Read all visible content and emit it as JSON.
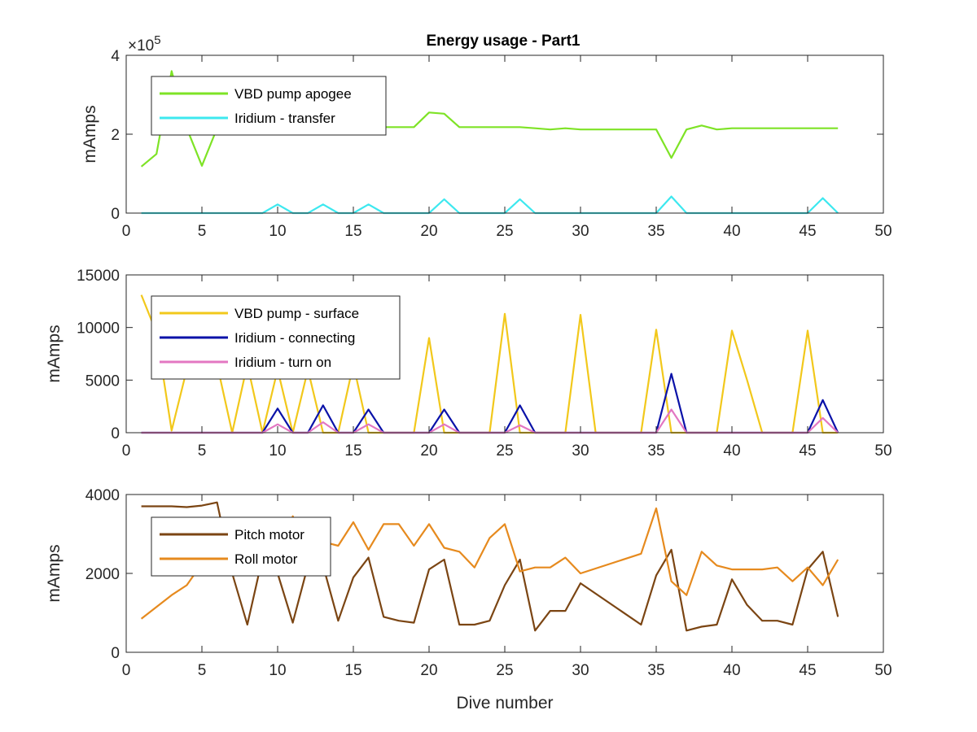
{
  "figure": {
    "title": "Energy usage - Part1",
    "xlabel": "Dive number"
  },
  "chart_data": [
    {
      "type": "line",
      "title": "Energy usage - Part1",
      "xlabel": "",
      "ylabel": "mAmps",
      "xlim": [
        0,
        50
      ],
      "ylim": [
        0,
        400000
      ],
      "xticks": [
        "0",
        "5",
        "10",
        "15",
        "20",
        "25",
        "30",
        "35",
        "40",
        "45",
        "50"
      ],
      "yticks": [
        "0",
        "2",
        "4"
      ],
      "exponent_label": "×10",
      "exponent_power": "5",
      "legend_position": "top-left",
      "series": [
        {
          "name": "VBD pump apogee",
          "color": "#7ee326",
          "x": [
            1,
            2,
            3,
            4,
            5,
            6,
            7,
            8,
            9,
            10,
            11,
            12,
            13,
            14,
            15,
            16,
            17,
            18,
            19,
            20,
            21,
            22,
            23,
            24,
            25,
            26,
            27,
            28,
            29,
            30,
            31,
            32,
            33,
            34,
            35,
            36,
            37,
            38,
            39,
            40,
            41,
            42,
            43,
            44,
            45,
            46,
            47
          ],
          "y": [
            118000,
            150000,
            360000,
            215000,
            120000,
            215000,
            215000,
            215000,
            215000,
            215000,
            218000,
            218000,
            218000,
            218000,
            218000,
            218000,
            218000,
            218000,
            218000,
            255000,
            252000,
            218000,
            218000,
            218000,
            218000,
            218000,
            215000,
            212000,
            215000,
            212000,
            212000,
            212000,
            212000,
            212000,
            212000,
            140000,
            212000,
            222000,
            212000,
            215000,
            215000,
            215000,
            215000,
            215000,
            215000,
            215000,
            215000
          ]
        },
        {
          "name": "Iridium - transfer",
          "color": "#3de8ef",
          "x": [
            1,
            9,
            10,
            11,
            12,
            13,
            14,
            15,
            16,
            17,
            18,
            19,
            20,
            21,
            22,
            23,
            24,
            25,
            26,
            27,
            28,
            29,
            30,
            31,
            32,
            33,
            34,
            35,
            36,
            37,
            38,
            39,
            40,
            41,
            42,
            43,
            44,
            45,
            46,
            47
          ],
          "y": [
            0,
            0,
            22000,
            0,
            0,
            22000,
            0,
            0,
            22000,
            0,
            0,
            0,
            0,
            35000,
            0,
            0,
            0,
            0,
            35000,
            0,
            0,
            0,
            0,
            0,
            0,
            0,
            0,
            0,
            42000,
            0,
            0,
            0,
            0,
            0,
            0,
            0,
            0,
            0,
            38000,
            0
          ]
        }
      ]
    },
    {
      "type": "line",
      "title": "",
      "xlabel": "",
      "ylabel": "mAmps",
      "xlim": [
        0,
        50
      ],
      "ylim": [
        0,
        15000
      ],
      "xticks": [
        "0",
        "5",
        "10",
        "15",
        "20",
        "25",
        "30",
        "35",
        "40",
        "45",
        "50"
      ],
      "yticks": [
        "0",
        "5000",
        "10000",
        "15000"
      ],
      "legend_position": "top-left",
      "series": [
        {
          "name": "VBD pump - surface",
          "color": "#f2c81b",
          "x": [
            1,
            2,
            3,
            4,
            5,
            6,
            7,
            8,
            9,
            10,
            11,
            12,
            13,
            14,
            15,
            16,
            17,
            18,
            19,
            20,
            21,
            22,
            23,
            24,
            25,
            26,
            27,
            28,
            29,
            30,
            31,
            32,
            33,
            34,
            35,
            36,
            37,
            38,
            39,
            40,
            41,
            42,
            43,
            44,
            45,
            46,
            47
          ],
          "y": [
            13100,
            9500,
            200,
            6000,
            9000,
            6500,
            0,
            6500,
            0,
            6000,
            0,
            6000,
            0,
            0,
            6500,
            0,
            0,
            0,
            0,
            9000,
            0,
            0,
            0,
            0,
            11300,
            0,
            0,
            0,
            0,
            11200,
            0,
            0,
            0,
            0,
            9800,
            0,
            0,
            0,
            0,
            9700,
            5000,
            0,
            0,
            0,
            9700,
            0,
            0
          ]
        },
        {
          "name": "Iridium - connecting",
          "color": "#0a12a8",
          "x": [
            1,
            9,
            10,
            11,
            12,
            13,
            14,
            15,
            16,
            17,
            18,
            19,
            20,
            21,
            22,
            23,
            24,
            25,
            26,
            27,
            28,
            29,
            30,
            31,
            32,
            33,
            34,
            35,
            36,
            37,
            38,
            39,
            40,
            41,
            42,
            43,
            44,
            45,
            46,
            47
          ],
          "y": [
            0,
            0,
            2300,
            0,
            0,
            2600,
            0,
            0,
            2200,
            0,
            0,
            0,
            0,
            2200,
            0,
            0,
            0,
            0,
            2600,
            0,
            0,
            0,
            0,
            0,
            0,
            0,
            0,
            0,
            5600,
            0,
            0,
            0,
            0,
            0,
            0,
            0,
            0,
            0,
            3100,
            0
          ]
        },
        {
          "name": "Iridium - turn on",
          "color": "#e377c2",
          "x": [
            1,
            9,
            10,
            11,
            12,
            13,
            14,
            15,
            16,
            17,
            18,
            19,
            20,
            21,
            22,
            23,
            24,
            25,
            26,
            27,
            28,
            29,
            30,
            31,
            32,
            33,
            34,
            35,
            36,
            37,
            38,
            39,
            40,
            41,
            42,
            43,
            44,
            45,
            46,
            47
          ],
          "y": [
            0,
            0,
            800,
            0,
            0,
            1000,
            0,
            0,
            800,
            0,
            0,
            0,
            0,
            800,
            0,
            0,
            0,
            0,
            700,
            0,
            0,
            0,
            0,
            0,
            0,
            0,
            0,
            0,
            2200,
            0,
            0,
            0,
            0,
            0,
            0,
            0,
            0,
            0,
            1400,
            0
          ]
        }
      ]
    },
    {
      "type": "line",
      "title": "",
      "xlabel": "Dive number",
      "ylabel": "mAmps",
      "xlim": [
        0,
        50
      ],
      "ylim": [
        0,
        4000
      ],
      "xticks": [
        "0",
        "5",
        "10",
        "15",
        "20",
        "25",
        "30",
        "35",
        "40",
        "45",
        "50"
      ],
      "yticks": [
        "0",
        "2000",
        "4000"
      ],
      "legend_position": "top-left",
      "series": [
        {
          "name": "Pitch motor",
          "color": "#7b4513",
          "x": [
            1,
            2,
            3,
            4,
            5,
            6,
            7,
            8,
            9,
            10,
            11,
            12,
            13,
            14,
            15,
            16,
            17,
            18,
            19,
            20,
            21,
            22,
            23,
            24,
            25,
            26,
            27,
            28,
            29,
            30,
            34,
            35,
            36,
            37,
            38,
            39,
            40,
            41,
            42,
            43,
            44,
            45,
            46,
            47
          ],
          "y": [
            3700,
            3700,
            3700,
            3680,
            3720,
            3800,
            2000,
            700,
            2400,
            2000,
            750,
            2200,
            2200,
            800,
            1900,
            2400,
            900,
            800,
            750,
            2100,
            2350,
            700,
            700,
            800,
            1700,
            2350,
            550,
            1050,
            1050,
            1750,
            700,
            1950,
            2600,
            550,
            650,
            700,
            1850,
            1200,
            800,
            800,
            700,
            2100,
            2550,
            900
          ]
        },
        {
          "name": "Roll motor",
          "color": "#e68a1e",
          "x": [
            1,
            2,
            3,
            4,
            5,
            6,
            7,
            8,
            9,
            10,
            11,
            12,
            13,
            14,
            15,
            16,
            17,
            18,
            19,
            20,
            21,
            22,
            23,
            24,
            25,
            26,
            27,
            28,
            29,
            30,
            34,
            35,
            36,
            37,
            38,
            39,
            40,
            41,
            42,
            43,
            44,
            45,
            46,
            47
          ],
          "y": [
            850,
            1150,
            1450,
            1700,
            2250,
            2600,
            2600,
            2600,
            2600,
            2050,
            3450,
            2600,
            2800,
            2700,
            3300,
            2600,
            3250,
            3250,
            2700,
            3250,
            2650,
            2550,
            2150,
            2900,
            3250,
            2050,
            2150,
            2150,
            2400,
            2000,
            2500,
            3650,
            1800,
            1450,
            2550,
            2200,
            2100,
            2100,
            2100,
            2150,
            1800,
            2150,
            1700,
            2350
          ]
        }
      ]
    }
  ]
}
